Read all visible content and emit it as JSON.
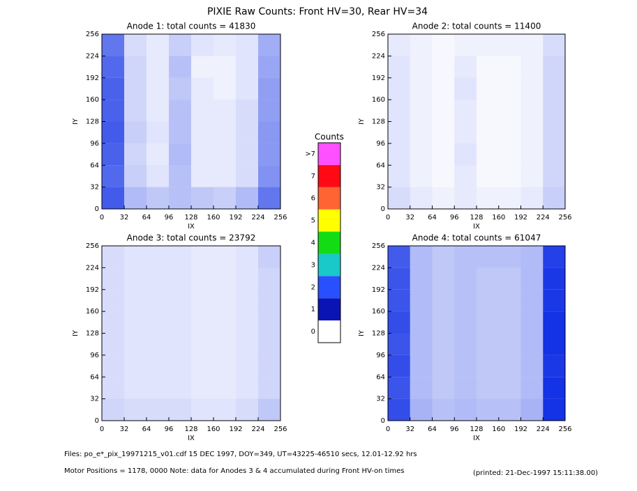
{
  "title": "PIXIE Raw Counts:  Front HV=30, Rear HV=34",
  "chart_data": [
    {
      "type": "heatmap",
      "title": "Anode 1: total counts = 41830",
      "xlabel": "IX",
      "ylabel": "IY",
      "xlim": [
        0,
        256
      ],
      "ylim": [
        0,
        256
      ],
      "xticks": [
        0,
        32,
        64,
        96,
        128,
        160,
        192,
        224,
        256
      ],
      "yticks": [
        0,
        32,
        64,
        96,
        128,
        160,
        192,
        224,
        256
      ],
      "z": [
        [
          2.4,
          1.0,
          0.8,
          0.9,
          0.8,
          0.7,
          1.0,
          2.0
        ],
        [
          2.2,
          0.7,
          0.4,
          0.9,
          0.3,
          0.3,
          0.5,
          1.6
        ],
        [
          2.3,
          0.6,
          0.3,
          1.0,
          0.3,
          0.3,
          0.5,
          1.5
        ],
        [
          2.4,
          0.7,
          0.4,
          0.9,
          0.3,
          0.3,
          0.5,
          1.5
        ],
        [
          2.3,
          0.6,
          0.3,
          0.9,
          0.3,
          0.3,
          0.5,
          1.4
        ],
        [
          2.3,
          0.6,
          0.3,
          0.8,
          0.3,
          0.2,
          0.4,
          1.4
        ],
        [
          2.2,
          0.6,
          0.3,
          0.9,
          0.2,
          0.2,
          0.4,
          1.3
        ],
        [
          2.0,
          0.5,
          0.3,
          0.7,
          0.4,
          0.3,
          0.4,
          1.2
        ]
      ]
    },
    {
      "type": "heatmap",
      "title": "Anode 2: total counts = 11400",
      "xlabel": "IX",
      "ylabel": "IY",
      "xlim": [
        0,
        256
      ],
      "ylim": [
        0,
        256
      ],
      "xticks": [
        0,
        32,
        64,
        96,
        128,
        160,
        192,
        224,
        256
      ],
      "yticks": [
        0,
        32,
        64,
        96,
        128,
        160,
        192,
        224,
        256
      ],
      "z": [
        [
          0.5,
          0.3,
          0.2,
          0.3,
          0.2,
          0.2,
          0.3,
          0.7
        ],
        [
          0.4,
          0.2,
          0.1,
          0.3,
          0.1,
          0.1,
          0.2,
          0.6
        ],
        [
          0.4,
          0.2,
          0.1,
          0.4,
          0.1,
          0.1,
          0.2,
          0.6
        ],
        [
          0.4,
          0.2,
          0.1,
          0.3,
          0.1,
          0.1,
          0.2,
          0.6
        ],
        [
          0.4,
          0.2,
          0.1,
          0.3,
          0.1,
          0.1,
          0.2,
          0.6
        ],
        [
          0.4,
          0.2,
          0.1,
          0.4,
          0.1,
          0.1,
          0.2,
          0.6
        ],
        [
          0.4,
          0.2,
          0.1,
          0.3,
          0.1,
          0.1,
          0.2,
          0.6
        ],
        [
          0.3,
          0.2,
          0.1,
          0.2,
          0.2,
          0.2,
          0.2,
          0.5
        ]
      ]
    },
    {
      "type": "heatmap",
      "title": "Anode 3: total counts = 23792",
      "xlabel": "IX",
      "ylabel": "IY",
      "xlim": [
        0,
        256
      ],
      "ylim": [
        0,
        256
      ],
      "xticks": [
        0,
        32,
        64,
        96,
        128,
        160,
        192,
        224,
        256
      ],
      "yticks": [
        0,
        32,
        64,
        96,
        128,
        160,
        192,
        224,
        256
      ],
      "z": [
        [
          0.6,
          0.5,
          0.5,
          0.5,
          0.4,
          0.4,
          0.5,
          0.8
        ],
        [
          0.5,
          0.4,
          0.4,
          0.4,
          0.3,
          0.3,
          0.4,
          0.6
        ],
        [
          0.5,
          0.4,
          0.4,
          0.4,
          0.3,
          0.3,
          0.4,
          0.6
        ],
        [
          0.5,
          0.4,
          0.4,
          0.4,
          0.3,
          0.3,
          0.4,
          0.6
        ],
        [
          0.5,
          0.4,
          0.4,
          0.4,
          0.3,
          0.3,
          0.4,
          0.6
        ],
        [
          0.5,
          0.4,
          0.4,
          0.4,
          0.3,
          0.3,
          0.4,
          0.6
        ],
        [
          0.5,
          0.4,
          0.4,
          0.4,
          0.3,
          0.3,
          0.4,
          0.6
        ],
        [
          0.5,
          0.4,
          0.4,
          0.4,
          0.3,
          0.3,
          0.4,
          0.7
        ]
      ]
    },
    {
      "type": "heatmap",
      "title": "Anode 4: total counts = 61047",
      "xlabel": "IX",
      "ylabel": "IY",
      "xlim": [
        0,
        256
      ],
      "ylim": [
        0,
        256
      ],
      "xticks": [
        0,
        32,
        64,
        96,
        128,
        160,
        192,
        224,
        256
      ],
      "yticks": [
        0,
        32,
        64,
        96,
        128,
        160,
        192,
        224,
        256
      ],
      "z": [
        [
          2.6,
          1.1,
          0.9,
          1.0,
          0.9,
          0.9,
          1.1,
          3.0
        ],
        [
          2.5,
          1.0,
          0.8,
          0.9,
          0.8,
          0.8,
          1.0,
          3.0
        ],
        [
          2.6,
          1.0,
          0.8,
          0.9,
          0.8,
          0.8,
          1.0,
          2.9
        ],
        [
          2.5,
          1.0,
          0.8,
          0.9,
          0.8,
          0.8,
          1.0,
          3.0
        ],
        [
          2.6,
          1.0,
          0.8,
          0.9,
          0.8,
          0.8,
          1.0,
          3.0
        ],
        [
          2.5,
          1.0,
          0.8,
          0.9,
          0.8,
          0.8,
          1.0,
          2.9
        ],
        [
          2.5,
          1.0,
          0.8,
          0.9,
          0.8,
          0.8,
          1.0,
          2.9
        ],
        [
          2.4,
          1.0,
          0.8,
          0.9,
          0.9,
          0.9,
          1.0,
          2.8
        ]
      ]
    }
  ],
  "colorbar": {
    "title": "Counts",
    "ticks": [
      0,
      1,
      2,
      3,
      4,
      5,
      6,
      7,
      {
        "value": 8,
        "label": ">7"
      }
    ],
    "colors": [
      "#ffffff",
      "#0a14b4",
      "#2850ff",
      "#19c8c8",
      "#14dc14",
      "#ffff00",
      "#ff6432",
      "#ff0a14",
      "#ff50ff"
    ]
  },
  "footer": {
    "files": "Files: po_e*_pix_19971215_v01.cdf    15 DEC 1997, DOY=349, UT=43225-46510 secs, 12.01-12.92 hrs",
    "motor": "Motor Positions = 1178, 0000   Note: data for Anodes 3 & 4 accumulated during Front HV-on times",
    "printed": "(printed: 21-Dec-1997 15:11:38.00)"
  }
}
